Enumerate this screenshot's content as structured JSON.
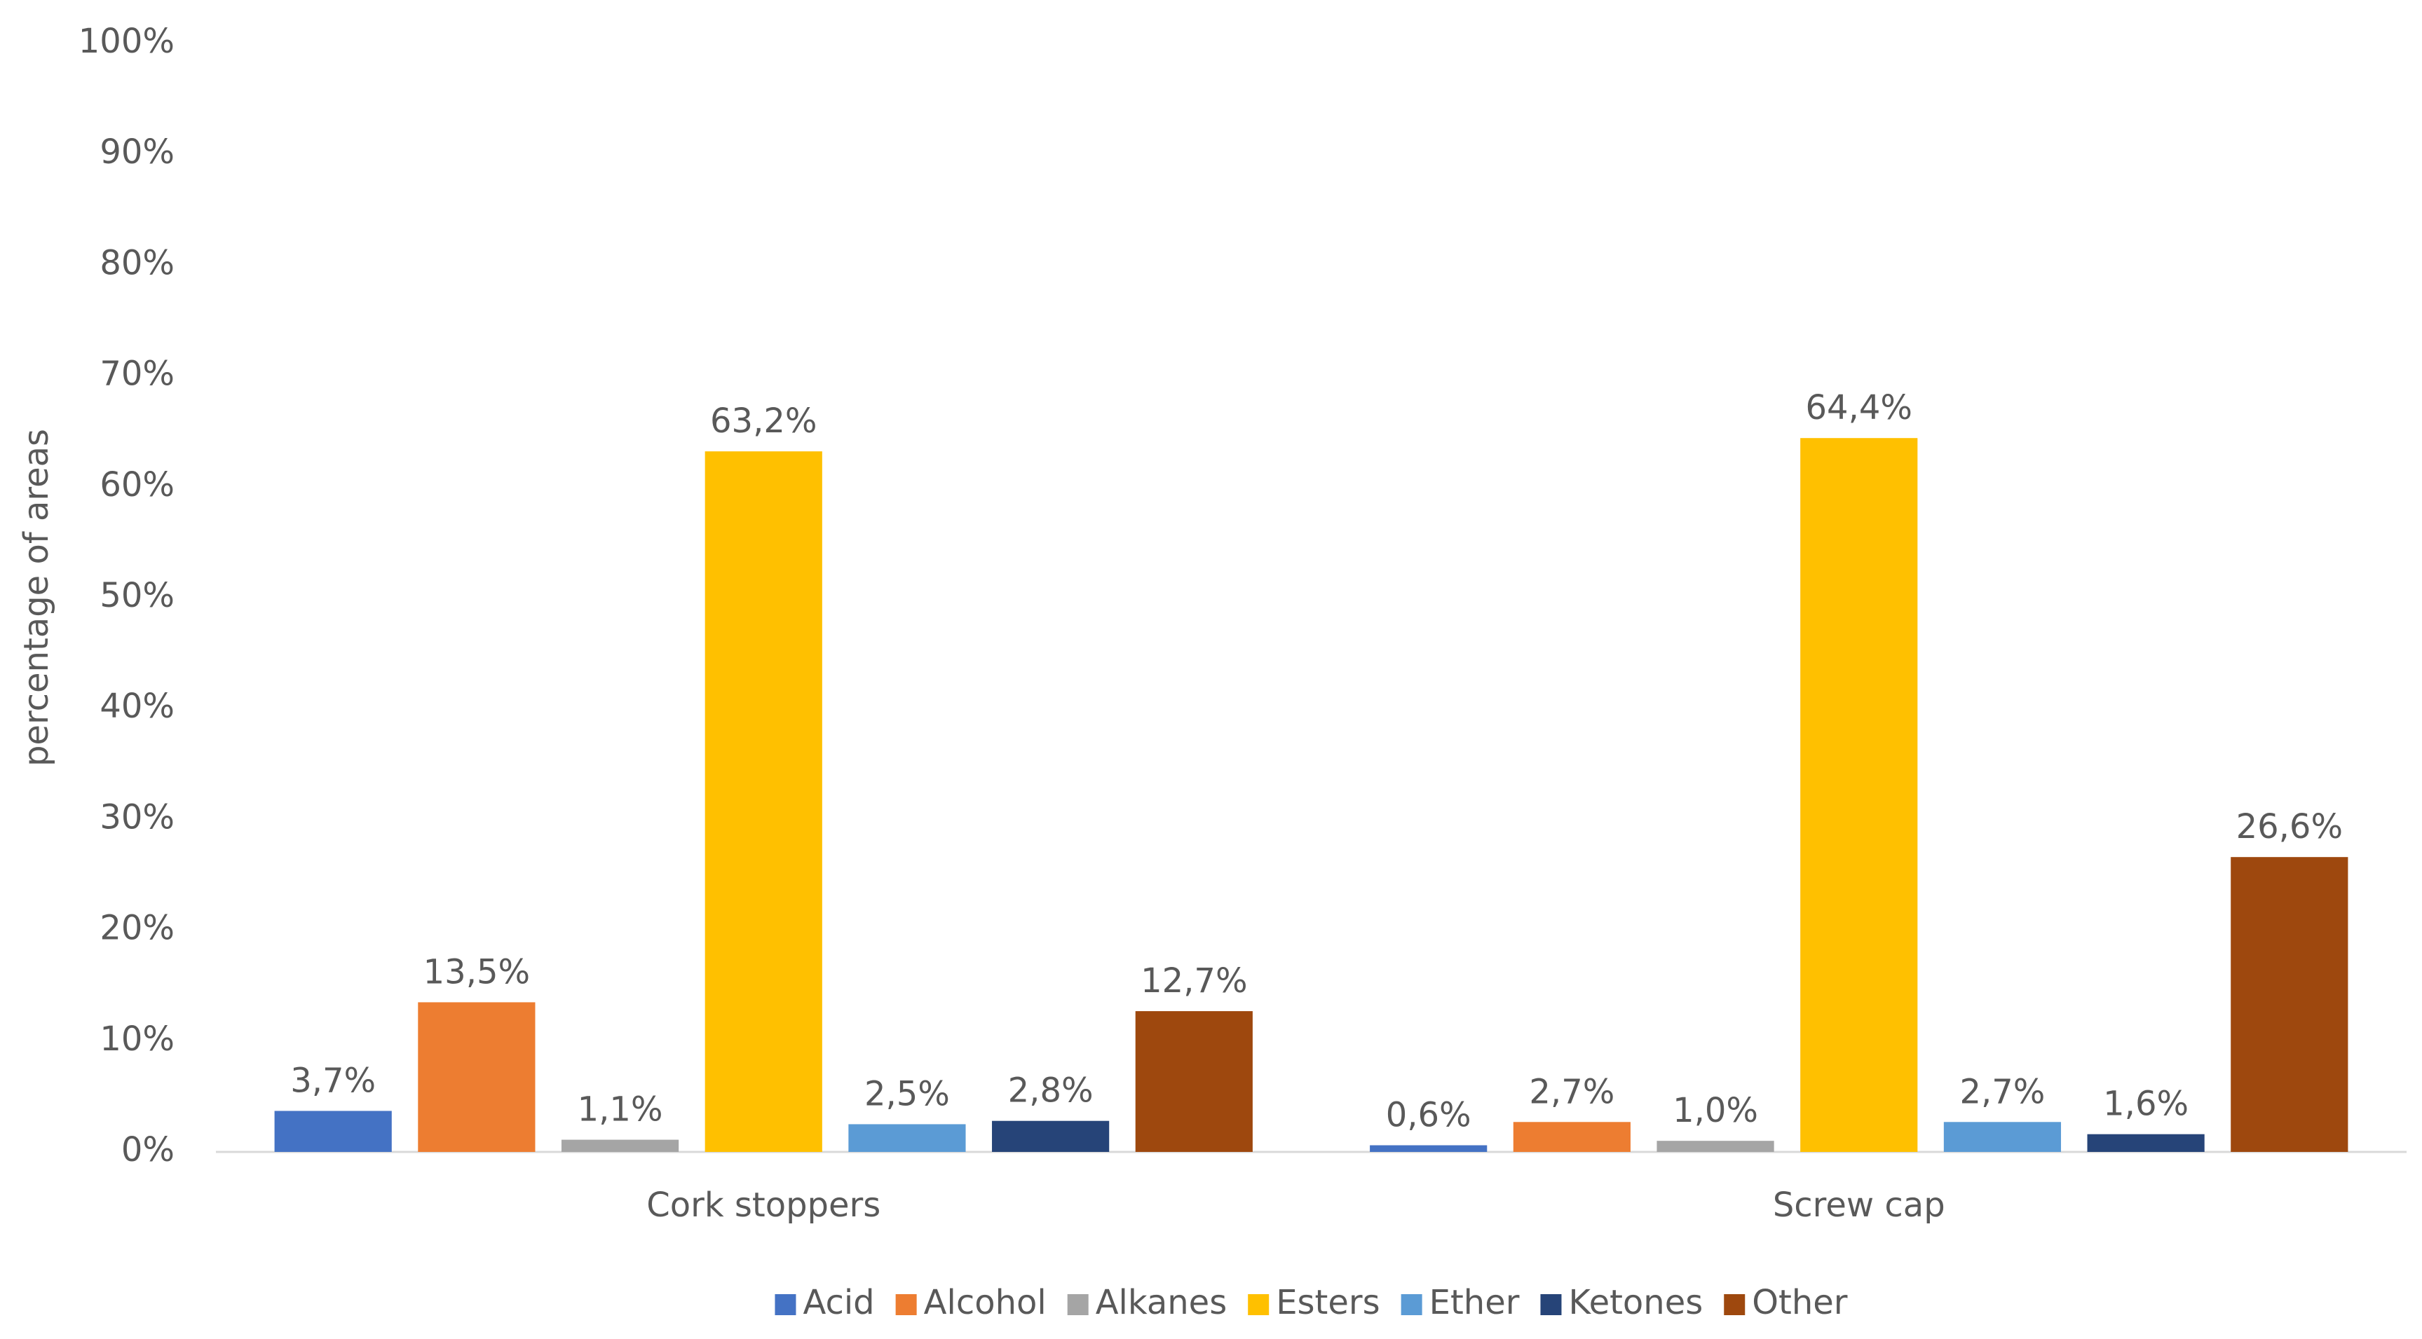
{
  "chart_data": {
    "type": "bar",
    "y_label": "percentage of areas",
    "categories": [
      "Cork stoppers",
      "Screw cap"
    ],
    "series": [
      {
        "name": "Acid",
        "color": "#4472c4",
        "values": [
          3.7,
          0.6
        ],
        "value_labels": [
          "3,7%",
          "0,6%"
        ]
      },
      {
        "name": "Alcohol",
        "color": "#ed7d31",
        "values": [
          13.5,
          2.7
        ],
        "value_labels": [
          "13,5%",
          "2,7%"
        ]
      },
      {
        "name": "Alkanes",
        "color": "#a5a5a5",
        "values": [
          1.1,
          1.0
        ],
        "value_labels": [
          "1,1%",
          "1,0%"
        ]
      },
      {
        "name": "Esters",
        "color": "#ffc000",
        "values": [
          63.2,
          64.4
        ],
        "value_labels": [
          "63,2%",
          "64,4%"
        ]
      },
      {
        "name": "Ether",
        "color": "#5b9bd5",
        "values": [
          2.5,
          2.7
        ],
        "value_labels": [
          "2,5%",
          "2,7%"
        ]
      },
      {
        "name": "Ketones",
        "color": "#264478",
        "values": [
          2.8,
          1.6
        ],
        "value_labels": [
          "2,8%",
          "1,6%"
        ]
      },
      {
        "name": "Other",
        "color": "#9e480e",
        "values": [
          12.7,
          26.6
        ],
        "value_labels": [
          "12,7%",
          "26,6%"
        ]
      }
    ],
    "ylim": [
      0,
      100
    ],
    "yticks": [
      {
        "value": 0,
        "label": "0%"
      },
      {
        "value": 10,
        "label": "10%"
      },
      {
        "value": 20,
        "label": "20%"
      },
      {
        "value": 30,
        "label": "30%"
      },
      {
        "value": 40,
        "label": "40%"
      },
      {
        "value": 50,
        "label": "50%"
      },
      {
        "value": 60,
        "label": "60%"
      },
      {
        "value": 70,
        "label": "70%"
      },
      {
        "value": 80,
        "label": "80%"
      },
      {
        "value": 90,
        "label": "90%"
      },
      {
        "value": 100,
        "label": "100%"
      }
    ],
    "grid": false,
    "legend": "bottom"
  }
}
